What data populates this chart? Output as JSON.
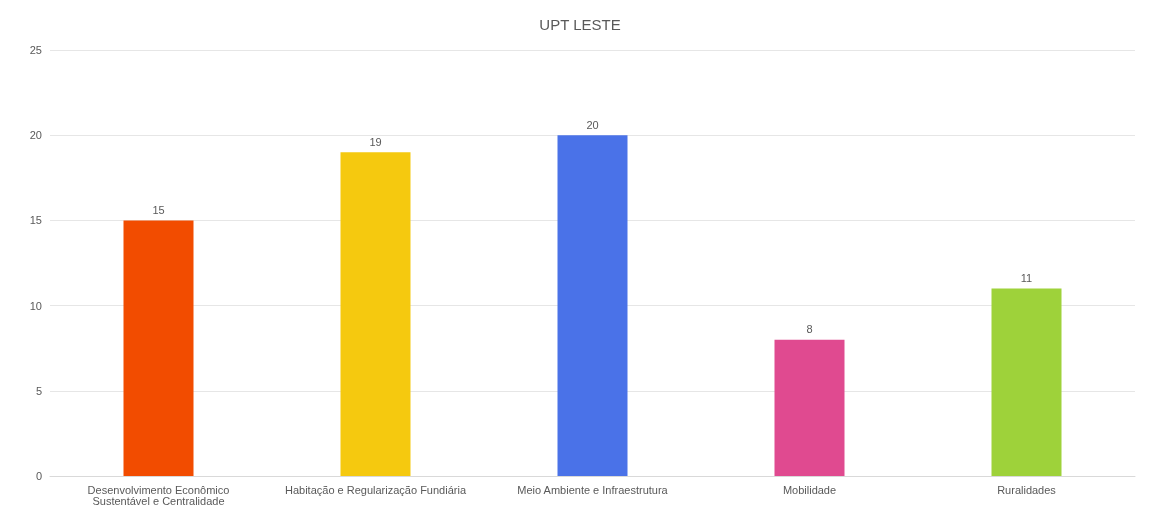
{
  "chart_data": {
    "type": "bar",
    "title": "UPT LESTE",
    "categories": [
      "Desenvolvimento Econômico\nSustentável e Centralidade",
      "Habitação e Regularização Fundiária",
      "Meio Ambiente e Infraestrutura",
      "Mobilidade",
      "Ruralidades"
    ],
    "values": [
      15,
      19,
      20,
      8,
      11
    ],
    "colors": [
      "#f24c00",
      "#f5c90f",
      "#4a72e8",
      "#e04a90",
      "#9ed23a"
    ],
    "ylim": [
      0,
      25
    ],
    "yticks": [
      0,
      5,
      10,
      15,
      20,
      25
    ],
    "grid": "y",
    "data_labels": true
  }
}
